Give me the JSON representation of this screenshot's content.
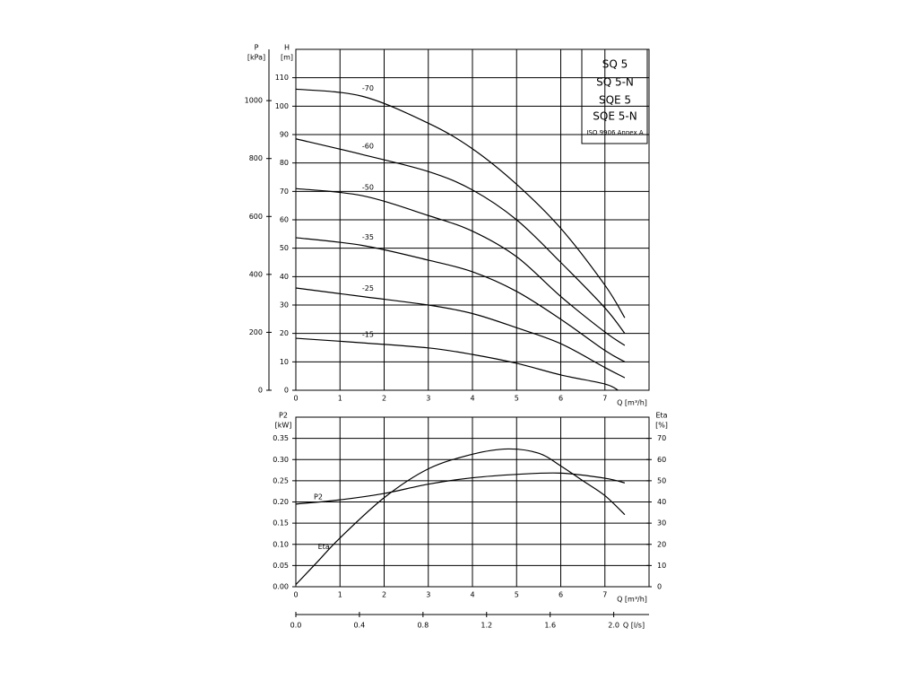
{
  "chart_data": [
    {
      "type": "line",
      "y_title": "H",
      "y_unit": "[m]",
      "y2_title": "P",
      "y2_unit": "[kPa]",
      "x_title": "Q [m³/h]",
      "xlim": [
        0,
        8
      ],
      "xticks": [
        0,
        1,
        2,
        3,
        4,
        5,
        6,
        7
      ],
      "ylim": [
        0,
        120
      ],
      "yticks": [
        0,
        10,
        20,
        30,
        40,
        50,
        60,
        70,
        80,
        90,
        100,
        110
      ],
      "y2lim": [
        0,
        1177
      ],
      "y2ticks": [
        0,
        200,
        400,
        600,
        800,
        1000
      ],
      "grid": true,
      "box_text": [
        "SQ 5",
        "SQ 5-N",
        "SQE 5",
        "SQE 5-N",
        "ISO 9906 Annex A"
      ],
      "series": [
        {
          "name": "-70",
          "color": "#000000",
          "x": [
            0,
            1.5,
            3,
            4,
            5,
            6,
            7,
            7.45
          ],
          "values": [
            106,
            103.5,
            94,
            85,
            72.5,
            57,
            37,
            25.5
          ]
        },
        {
          "name": "-60",
          "color": "#000000",
          "x": [
            0,
            1.5,
            3,
            4,
            5,
            6,
            7,
            7.45
          ],
          "values": [
            88.5,
            83,
            77,
            70.5,
            60,
            45,
            29,
            20
          ]
        },
        {
          "name": "-50",
          "color": "#000000",
          "x": [
            0,
            1.5,
            3,
            4,
            5,
            6,
            7,
            7.45
          ],
          "values": [
            71,
            68.5,
            61.5,
            56,
            47,
            33,
            20.5,
            15.8
          ]
        },
        {
          "name": "-35",
          "color": "#000000",
          "x": [
            0,
            1.5,
            3,
            4,
            5,
            6,
            7,
            7.45
          ],
          "values": [
            53.7,
            51,
            45.8,
            41.7,
            34.8,
            25,
            14,
            10
          ]
        },
        {
          "name": "-25",
          "color": "#000000",
          "x": [
            0,
            1.5,
            3,
            4,
            5,
            6,
            7,
            7.45
          ],
          "values": [
            36,
            33,
            30,
            27,
            22,
            16.4,
            8,
            4.4
          ]
        },
        {
          "name": "-15",
          "color": "#000000",
          "x": [
            0,
            1.5,
            3,
            4,
            5,
            6,
            7,
            7.3
          ],
          "values": [
            18.3,
            16.7,
            14.9,
            12.6,
            9.5,
            5.4,
            2.2,
            0
          ]
        }
      ]
    },
    {
      "type": "line",
      "y_title": "P2",
      "y_unit": "[kW]",
      "y2_title": "Eta",
      "y2_unit": "[%]",
      "x_title": "Q [m³/h]",
      "xlim": [
        0,
        8
      ],
      "xticks": [
        0,
        1,
        2,
        3,
        4,
        5,
        6,
        7
      ],
      "ylim": [
        0,
        0.4
      ],
      "yticks": [
        {
          "value": 0,
          "label": "0.00"
        },
        0.05,
        {
          "value": 0.1,
          "label": "0.10"
        },
        0.15,
        {
          "value": 0.2,
          "label": "0.20"
        },
        0.25,
        {
          "value": 0.3,
          "label": "0.30"
        },
        0.35
      ],
      "y2lim": [
        0,
        80
      ],
      "y2ticks": [
        0,
        10,
        20,
        30,
        40,
        50,
        60,
        70
      ],
      "x2_title": "Q [l/s]",
      "x2lim": [
        0,
        2.2222
      ],
      "x2ticks": [
        {
          "value": 0,
          "label": "0.0"
        },
        0.4,
        0.8,
        1.2,
        1.6,
        {
          "value": 2,
          "label": "2.0"
        }
      ],
      "grid": true,
      "series": [
        {
          "name": "P2",
          "color": "#000000",
          "x": [
            0,
            1,
            2,
            3,
            4,
            5,
            6,
            7,
            7.45
          ],
          "values": [
            0.195,
            0.205,
            0.22,
            0.242,
            0.257,
            0.265,
            0.268,
            0.256,
            0.245
          ]
        },
        {
          "name": "Eta",
          "color": "#000000",
          "axis": "y2",
          "x": [
            0,
            0.5,
            1,
            2,
            3,
            4,
            4.8,
            5.5,
            6,
            6.5,
            7,
            7.45
          ],
          "values": [
            1,
            12,
            23,
            42,
            55.6,
            62.5,
            65,
            63,
            57,
            50,
            43,
            34
          ]
        }
      ]
    }
  ]
}
